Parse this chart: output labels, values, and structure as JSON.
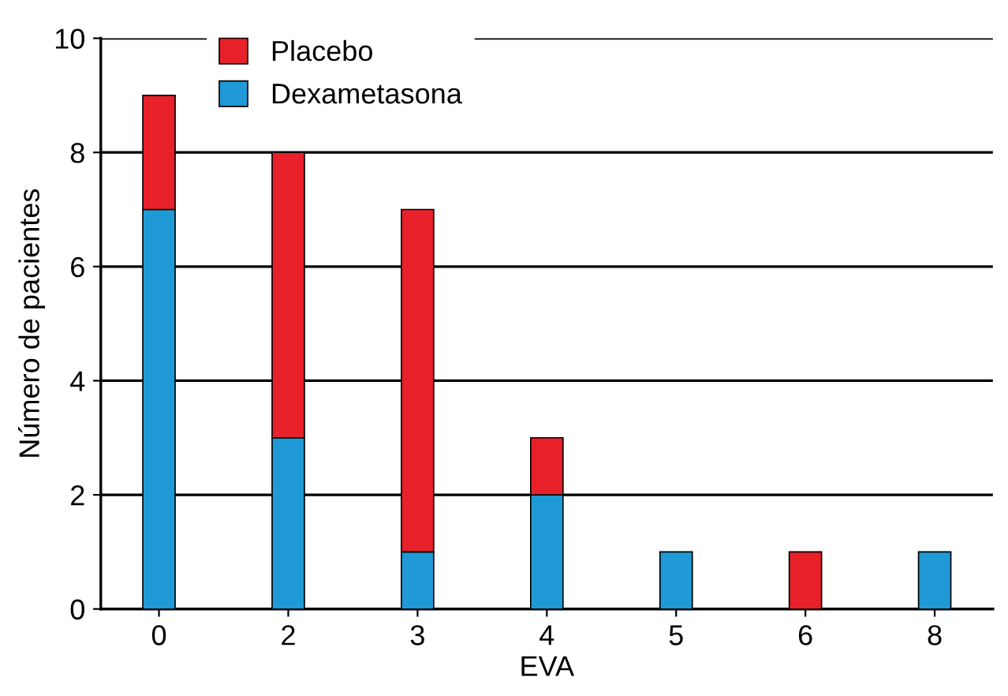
{
  "chart_data": {
    "type": "bar",
    "stacked": true,
    "xlabel": "EVA",
    "ylabel": "Número de pacientes",
    "categories": [
      "0",
      "2",
      "3",
      "4",
      "5",
      "6",
      "8"
    ],
    "series": [
      {
        "name": "Dexametasona",
        "color": "#1f9ad6",
        "values": [
          7,
          3,
          1,
          2,
          1,
          0,
          1
        ]
      },
      {
        "name": "Placebo",
        "color": "#e8202a",
        "values": [
          2,
          5,
          6,
          1,
          0,
          1,
          0
        ]
      }
    ],
    "ylim": [
      0,
      10
    ],
    "yticks": [
      0,
      2,
      4,
      6,
      8,
      10
    ],
    "grid": "y",
    "legend": "top left"
  }
}
